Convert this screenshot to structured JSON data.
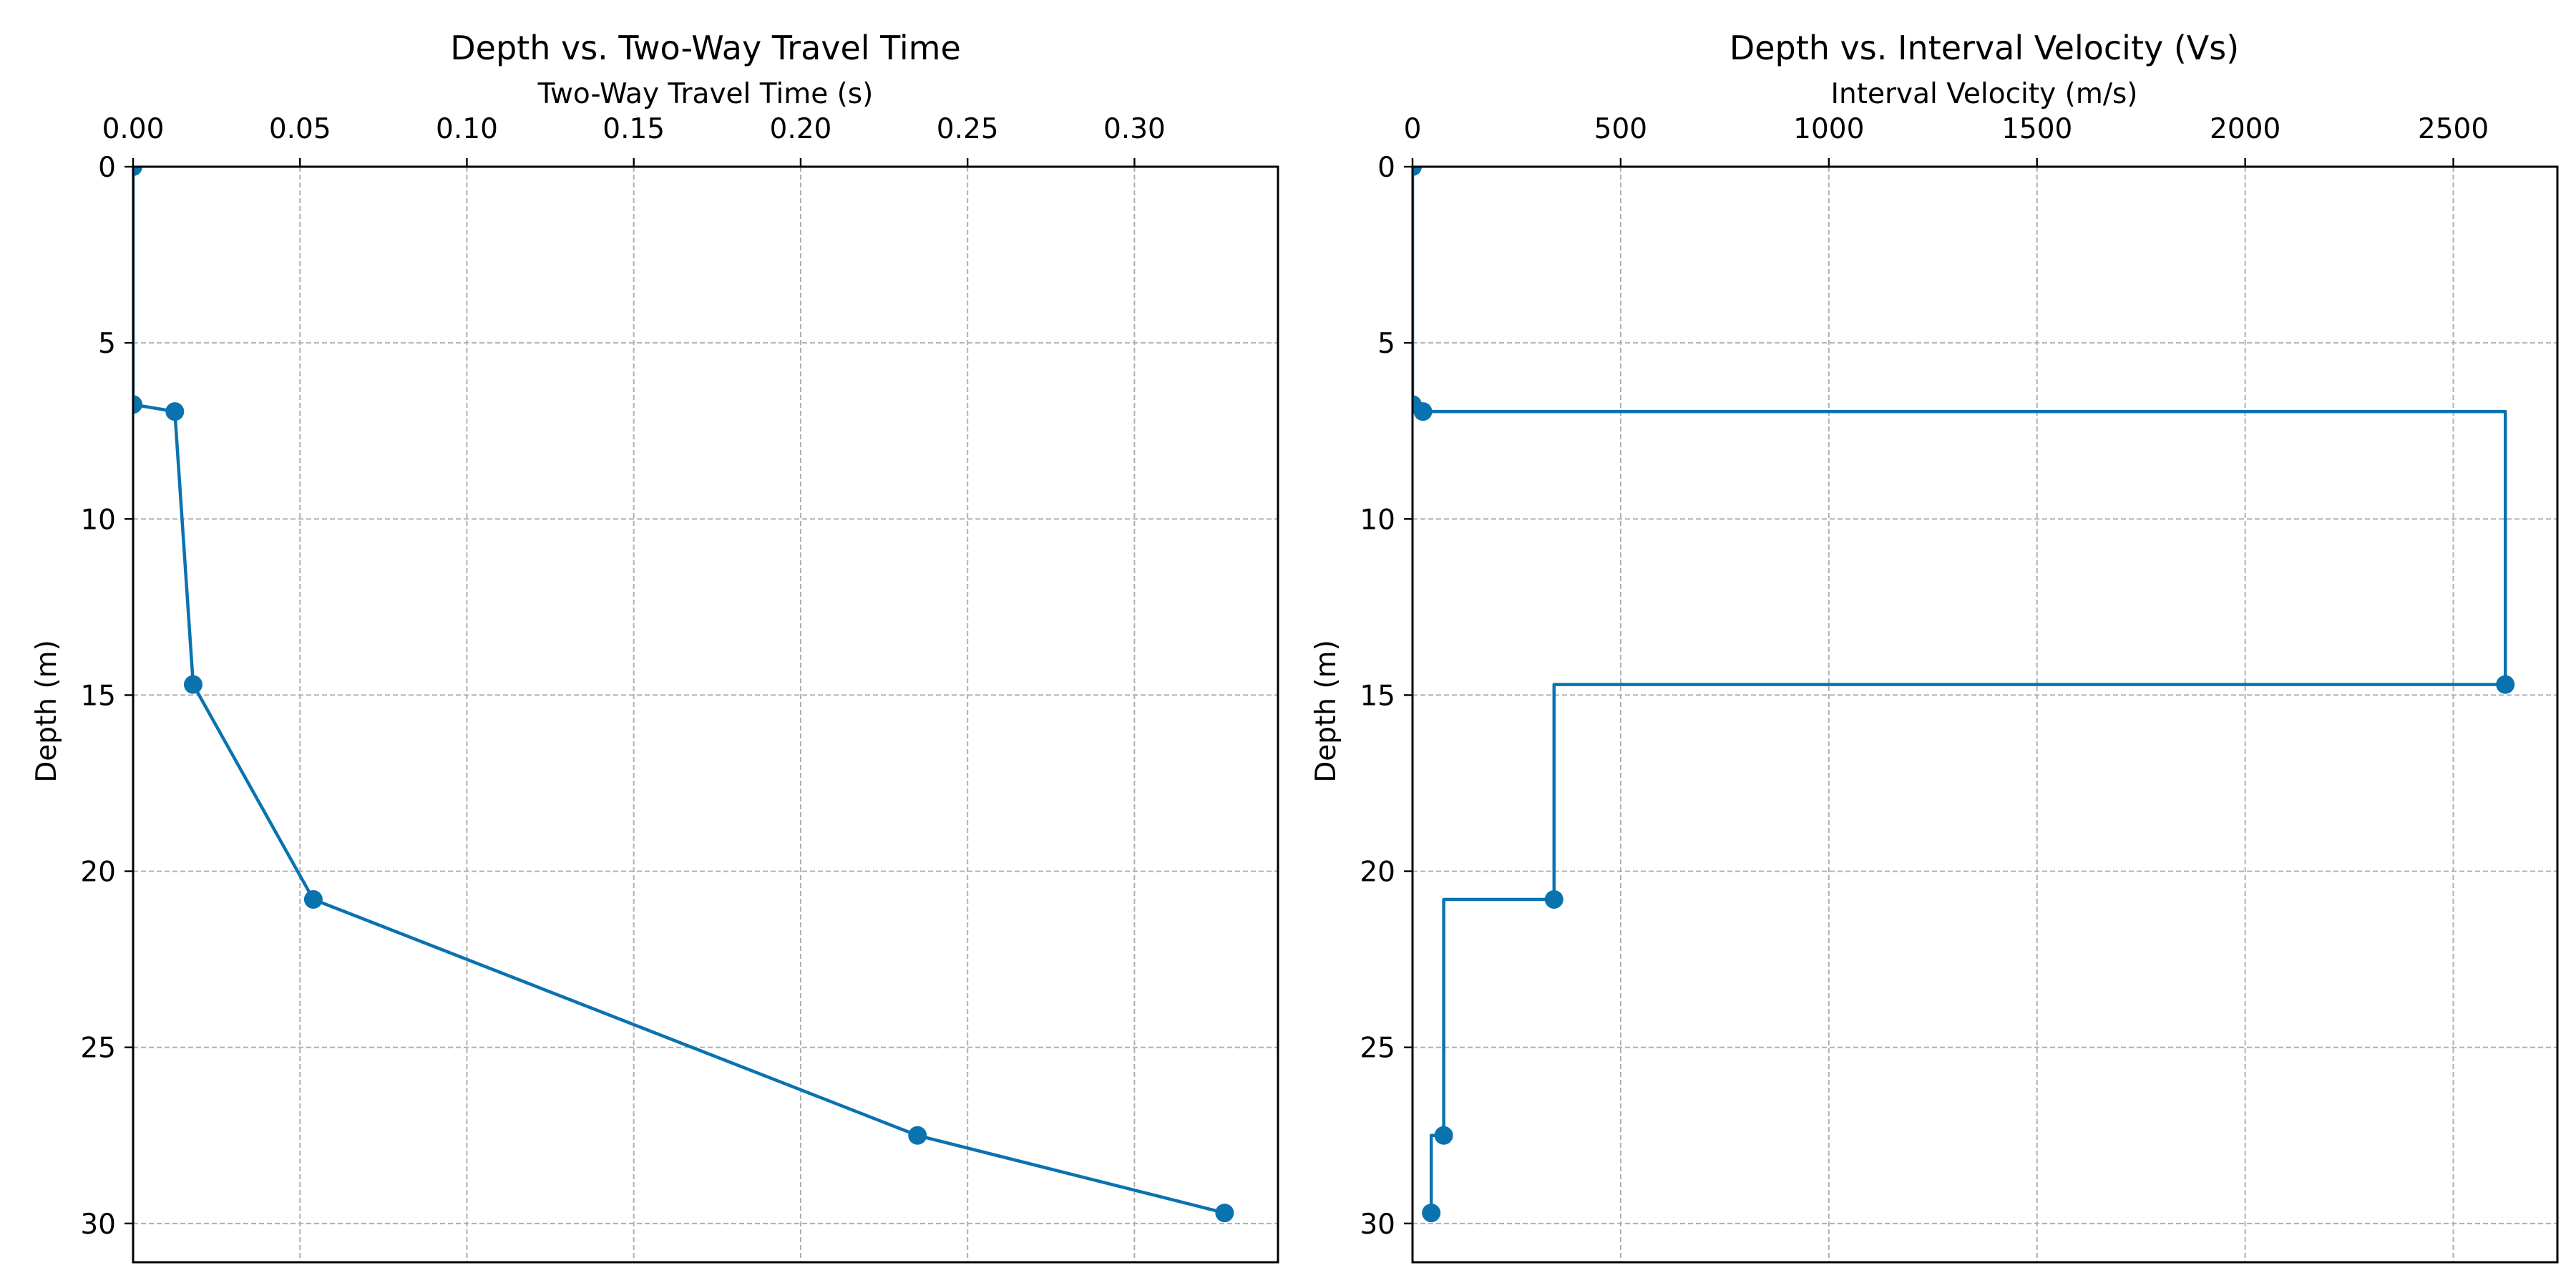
{
  "colors": {
    "series": "#0b72b0",
    "grid": "#b0b0b0",
    "axes": "#000000"
  },
  "chart_data": [
    {
      "type": "line",
      "title": "Depth vs. Two-Way Travel Time",
      "xlabel": "Two-Way Travel Time (s)",
      "ylabel": "Depth (m)",
      "xlim": [
        0,
        0.343
      ],
      "ylim": [
        31.1,
        0
      ],
      "x_ticks": [
        0,
        0.05,
        0.1,
        0.15,
        0.2,
        0.25,
        0.3
      ],
      "x_tick_labels": [
        "0.00",
        "0.05",
        "0.10",
        "0.15",
        "0.20",
        "0.25",
        "0.30"
      ],
      "y_ticks": [
        0,
        5,
        10,
        15,
        20,
        25,
        30
      ],
      "y_tick_labels": [
        "0",
        "5",
        "10",
        "15",
        "20",
        "25",
        "30"
      ],
      "x_axis_position": "top",
      "grid": true,
      "step": false,
      "series": [
        {
          "x": [
            0,
            0,
            0.0125,
            0.018,
            0.054,
            0.235,
            0.327
          ],
          "y": [
            0,
            6.75,
            6.95,
            14.7,
            20.8,
            27.5,
            29.7
          ]
        }
      ]
    },
    {
      "type": "line",
      "title": "Depth vs. Interval Velocity (Vs)",
      "xlabel": "Interval Velocity (m/s)",
      "ylabel": "Depth (m)",
      "xlim": [
        0,
        2750
      ],
      "ylim": [
        31.1,
        0
      ],
      "x_ticks": [
        0,
        500,
        1000,
        1500,
        2000,
        2500
      ],
      "x_tick_labels": [
        "0",
        "500",
        "1000",
        "1500",
        "2000",
        "2500"
      ],
      "y_ticks": [
        0,
        5,
        10,
        15,
        20,
        25,
        30
      ],
      "y_tick_labels": [
        "0",
        "5",
        "10",
        "15",
        "20",
        "25",
        "30"
      ],
      "x_axis_position": "top",
      "grid": true,
      "step": true,
      "series": [
        {
          "x": [
            0,
            0,
            25,
            2625,
            340,
            75,
            45
          ],
          "y": [
            0,
            6.75,
            6.95,
            14.7,
            20.8,
            27.5,
            29.7
          ]
        }
      ]
    }
  ]
}
